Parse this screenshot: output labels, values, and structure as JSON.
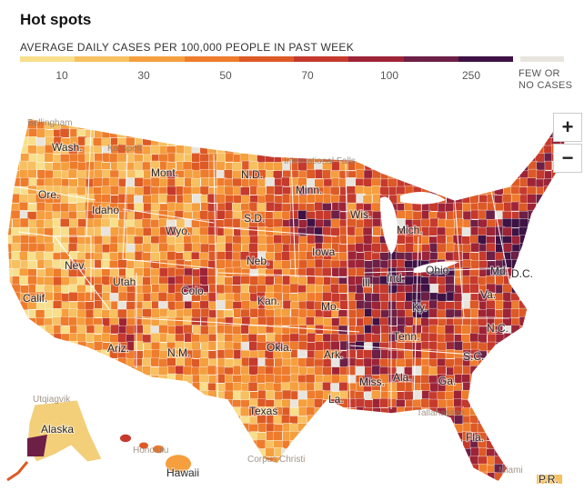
{
  "title": "Hot spots",
  "legend": {
    "label": "AVERAGE DAILY CASES PER 100,000 PEOPLE IN PAST WEEK",
    "ticks": [
      "10",
      "30",
      "50",
      "70",
      "100",
      "250"
    ],
    "few_cases": "FEW OR NO CASES",
    "colors": [
      "#f7df8c",
      "#f7c061",
      "#f59f3f",
      "#ee7c2c",
      "#dd5a26",
      "#c53a2d",
      "#9d2437",
      "#6d1f45",
      "#3e1244"
    ],
    "few_color": "#e8e5df"
  },
  "zoom": {
    "in_label": "+",
    "out_label": "−"
  },
  "map": {
    "state_labels": [
      "Wash.",
      "Ore.",
      "Calif.",
      "Nev.",
      "Idaho",
      "Mont.",
      "Wyo.",
      "Utah",
      "Colo.",
      "Ariz.",
      "N.M.",
      "Texas",
      "Okla.",
      "Kan.",
      "Neb.",
      "S.D.",
      "N.D.",
      "Minn.",
      "Iowa",
      "Mo.",
      "Ark.",
      "La.",
      "Miss.",
      "Ala.",
      "Ga.",
      "Fla.",
      "S.C.",
      "N.C.",
      "Tenn.",
      "Ky.",
      "Va.",
      "Ohio",
      "Mich.",
      "Wis.",
      "Ill.",
      "Ind.",
      "Md.",
      "D.C.",
      "Alaska",
      "Hawaii",
      "P.R."
    ],
    "faded_city_labels": [
      "Bellingham",
      "Kalispell",
      "International Falls",
      "Utqiagvik",
      "Honolulu",
      "Corpus Christi",
      "Tallahassee",
      "Miami"
    ]
  }
}
